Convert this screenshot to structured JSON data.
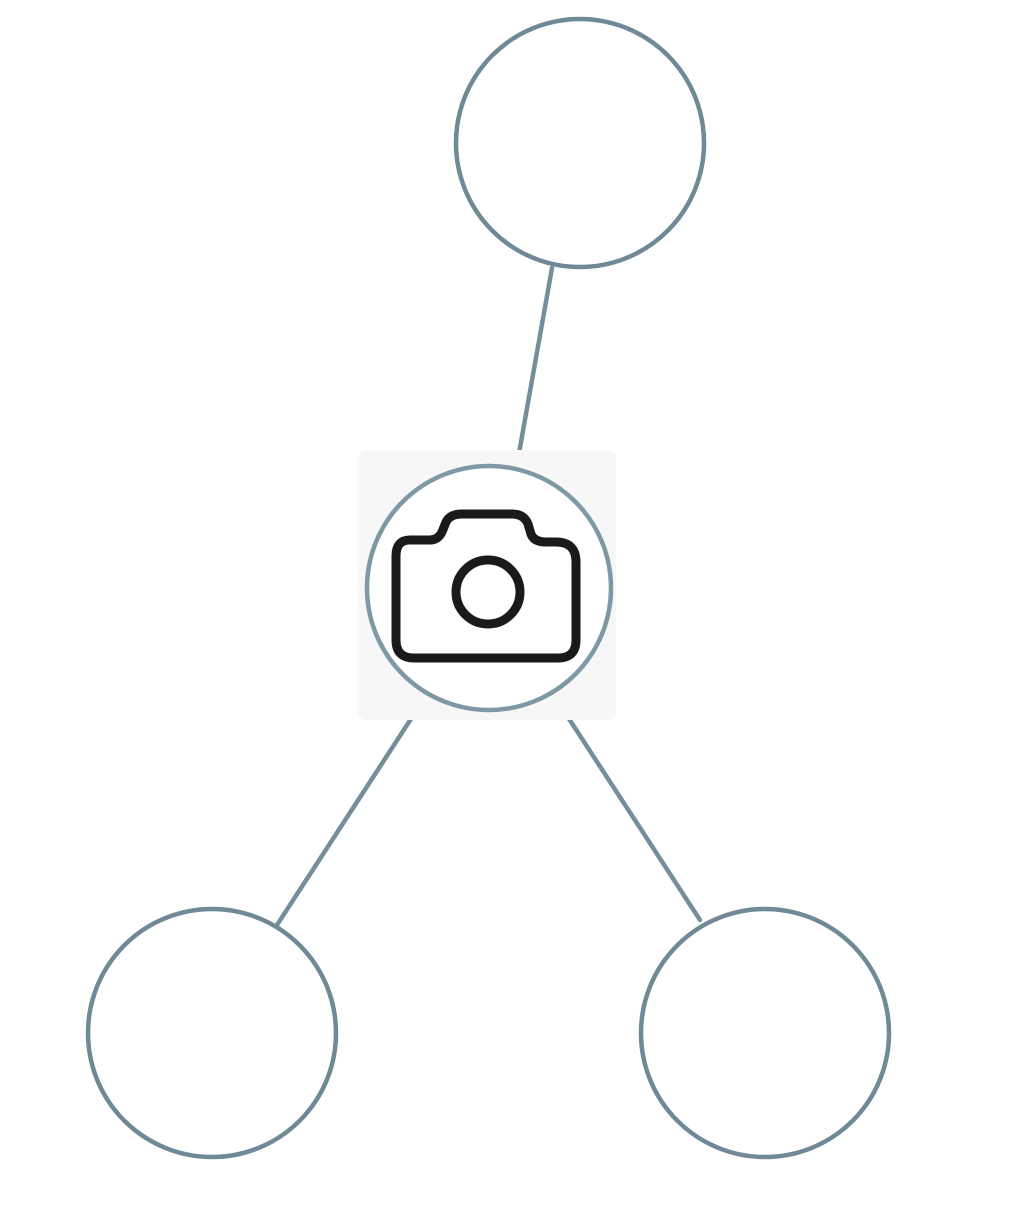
{
  "diagram": {
    "type": "hub-and-spoke",
    "center_node": {
      "icon": "camera-icon"
    },
    "leaf_nodes": [
      {
        "id": "top",
        "label": ""
      },
      {
        "id": "bottom-left",
        "label": ""
      },
      {
        "id": "bottom-right",
        "label": ""
      }
    ],
    "colors": {
      "stroke": "#6f8997",
      "icon": "#1a1a1a",
      "background": "#ffffff"
    }
  }
}
